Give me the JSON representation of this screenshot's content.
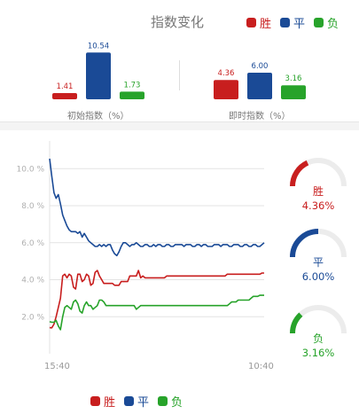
{
  "header": {
    "title": "指数变化"
  },
  "legend": [
    {
      "label": "胜",
      "color": "#c81e1e"
    },
    {
      "label": "平",
      "color": "#1a4a96"
    },
    {
      "label": "负",
      "color": "#27a32a"
    }
  ],
  "chart_data": [
    {
      "type": "bar",
      "groups": [
        {
          "caption": "初始指数（%）",
          "labels": [
            "1.41",
            "10.54",
            "1.73"
          ],
          "values": [
            1.41,
            10.54,
            1.73
          ]
        },
        {
          "caption": "即时指数（%）",
          "labels": [
            "4.36",
            "6.00",
            "3.16"
          ],
          "values": [
            4.36,
            6.0,
            3.16
          ]
        }
      ],
      "series_colors": [
        "#c81e1e",
        "#1a4a96",
        "#27a32a"
      ]
    },
    {
      "type": "line",
      "x_ticks": [
        "15:40",
        "10:40"
      ],
      "y_ticks": [
        "2.0 %",
        "4.0 %",
        "6.0 %",
        "8.0 %",
        "10.0 %"
      ],
      "ylim": [
        0,
        11.5
      ],
      "x_count": 100,
      "series": [
        {
          "name": "平",
          "color": "#1a4a96",
          "values": [
            10.54,
            9.6,
            8.7,
            8.4,
            8.6,
            8.1,
            7.5,
            7.2,
            6.9,
            6.7,
            6.6,
            6.6,
            6.6,
            6.5,
            6.6,
            6.3,
            6.5,
            6.3,
            6.1,
            6.0,
            5.9,
            5.8,
            5.8,
            5.9,
            5.8,
            5.9,
            5.8,
            5.9,
            5.9,
            5.6,
            5.4,
            5.3,
            5.5,
            5.8,
            6.0,
            6.0,
            5.9,
            5.8,
            5.9,
            5.9,
            6.0,
            5.9,
            5.8,
            5.8,
            5.9,
            5.9,
            5.8,
            5.8,
            5.9,
            5.8,
            5.9,
            5.9,
            5.8,
            5.8,
            5.9,
            5.9,
            5.8,
            5.8,
            5.9,
            5.9,
            5.9,
            5.9,
            5.8,
            5.9,
            5.9,
            5.9,
            5.8,
            5.8,
            5.9,
            5.9,
            5.8,
            5.9,
            5.9,
            5.8,
            5.8,
            5.8,
            5.9,
            5.9,
            5.9,
            5.8,
            5.9,
            5.9,
            5.9,
            5.8,
            5.8,
            5.9,
            5.9,
            5.9,
            5.8,
            5.8,
            5.9,
            5.9,
            5.8,
            5.8,
            5.9,
            5.9,
            5.8,
            5.8,
            5.9,
            6.0
          ]
        },
        {
          "name": "胜",
          "color": "#c81e1e",
          "values": [
            1.41,
            1.4,
            1.6,
            2.0,
            2.5,
            3.0,
            4.2,
            4.3,
            4.1,
            4.3,
            4.2,
            3.6,
            3.5,
            4.3,
            4.3,
            3.9,
            4.0,
            4.3,
            4.2,
            3.7,
            3.8,
            4.4,
            4.5,
            4.2,
            4.0,
            3.8,
            3.8,
            3.8,
            3.8,
            3.8,
            3.7,
            3.7,
            3.7,
            3.9,
            3.9,
            3.9,
            3.9,
            4.2,
            4.2,
            4.2,
            4.2,
            4.5,
            4.1,
            4.2,
            4.1,
            4.1,
            4.1,
            4.1,
            4.1,
            4.1,
            4.1,
            4.1,
            4.1,
            4.1,
            4.2,
            4.2,
            4.2,
            4.2,
            4.2,
            4.2,
            4.2,
            4.2,
            4.2,
            4.2,
            4.2,
            4.2,
            4.2,
            4.2,
            4.2,
            4.2,
            4.2,
            4.2,
            4.2,
            4.2,
            4.2,
            4.2,
            4.2,
            4.2,
            4.2,
            4.2,
            4.2,
            4.2,
            4.3,
            4.3,
            4.3,
            4.3,
            4.3,
            4.3,
            4.3,
            4.3,
            4.3,
            4.3,
            4.3,
            4.3,
            4.3,
            4.3,
            4.3,
            4.3,
            4.36,
            4.36
          ]
        },
        {
          "name": "负",
          "color": "#27a32a",
          "values": [
            1.73,
            1.7,
            1.7,
            1.8,
            1.5,
            1.3,
            2.0,
            2.5,
            2.6,
            2.5,
            2.4,
            2.8,
            2.9,
            2.7,
            2.3,
            2.2,
            2.6,
            2.8,
            2.6,
            2.6,
            2.4,
            2.5,
            2.6,
            2.9,
            2.9,
            2.8,
            2.6,
            2.6,
            2.6,
            2.6,
            2.6,
            2.6,
            2.6,
            2.6,
            2.6,
            2.6,
            2.6,
            2.6,
            2.6,
            2.6,
            2.4,
            2.5,
            2.6,
            2.6,
            2.6,
            2.6,
            2.6,
            2.6,
            2.6,
            2.6,
            2.6,
            2.6,
            2.6,
            2.6,
            2.6,
            2.6,
            2.6,
            2.6,
            2.6,
            2.6,
            2.6,
            2.6,
            2.6,
            2.6,
            2.6,
            2.6,
            2.6,
            2.6,
            2.6,
            2.6,
            2.6,
            2.6,
            2.6,
            2.6,
            2.6,
            2.6,
            2.6,
            2.6,
            2.6,
            2.6,
            2.6,
            2.6,
            2.6,
            2.7,
            2.8,
            2.8,
            2.8,
            2.9,
            2.9,
            2.9,
            2.9,
            2.9,
            2.9,
            3.0,
            3.1,
            3.1,
            3.1,
            3.16,
            3.16,
            3.16
          ]
        }
      ]
    }
  ],
  "gauges": [
    {
      "label": "胜",
      "value_text": "4.36%",
      "value": 4.36,
      "color": "#c81e1e"
    },
    {
      "label": "平",
      "value_text": "6.00%",
      "value": 6.0,
      "color": "#1a4a96"
    },
    {
      "label": "负",
      "value_text": "3.16%",
      "value": 3.16,
      "color": "#27a32a"
    }
  ]
}
